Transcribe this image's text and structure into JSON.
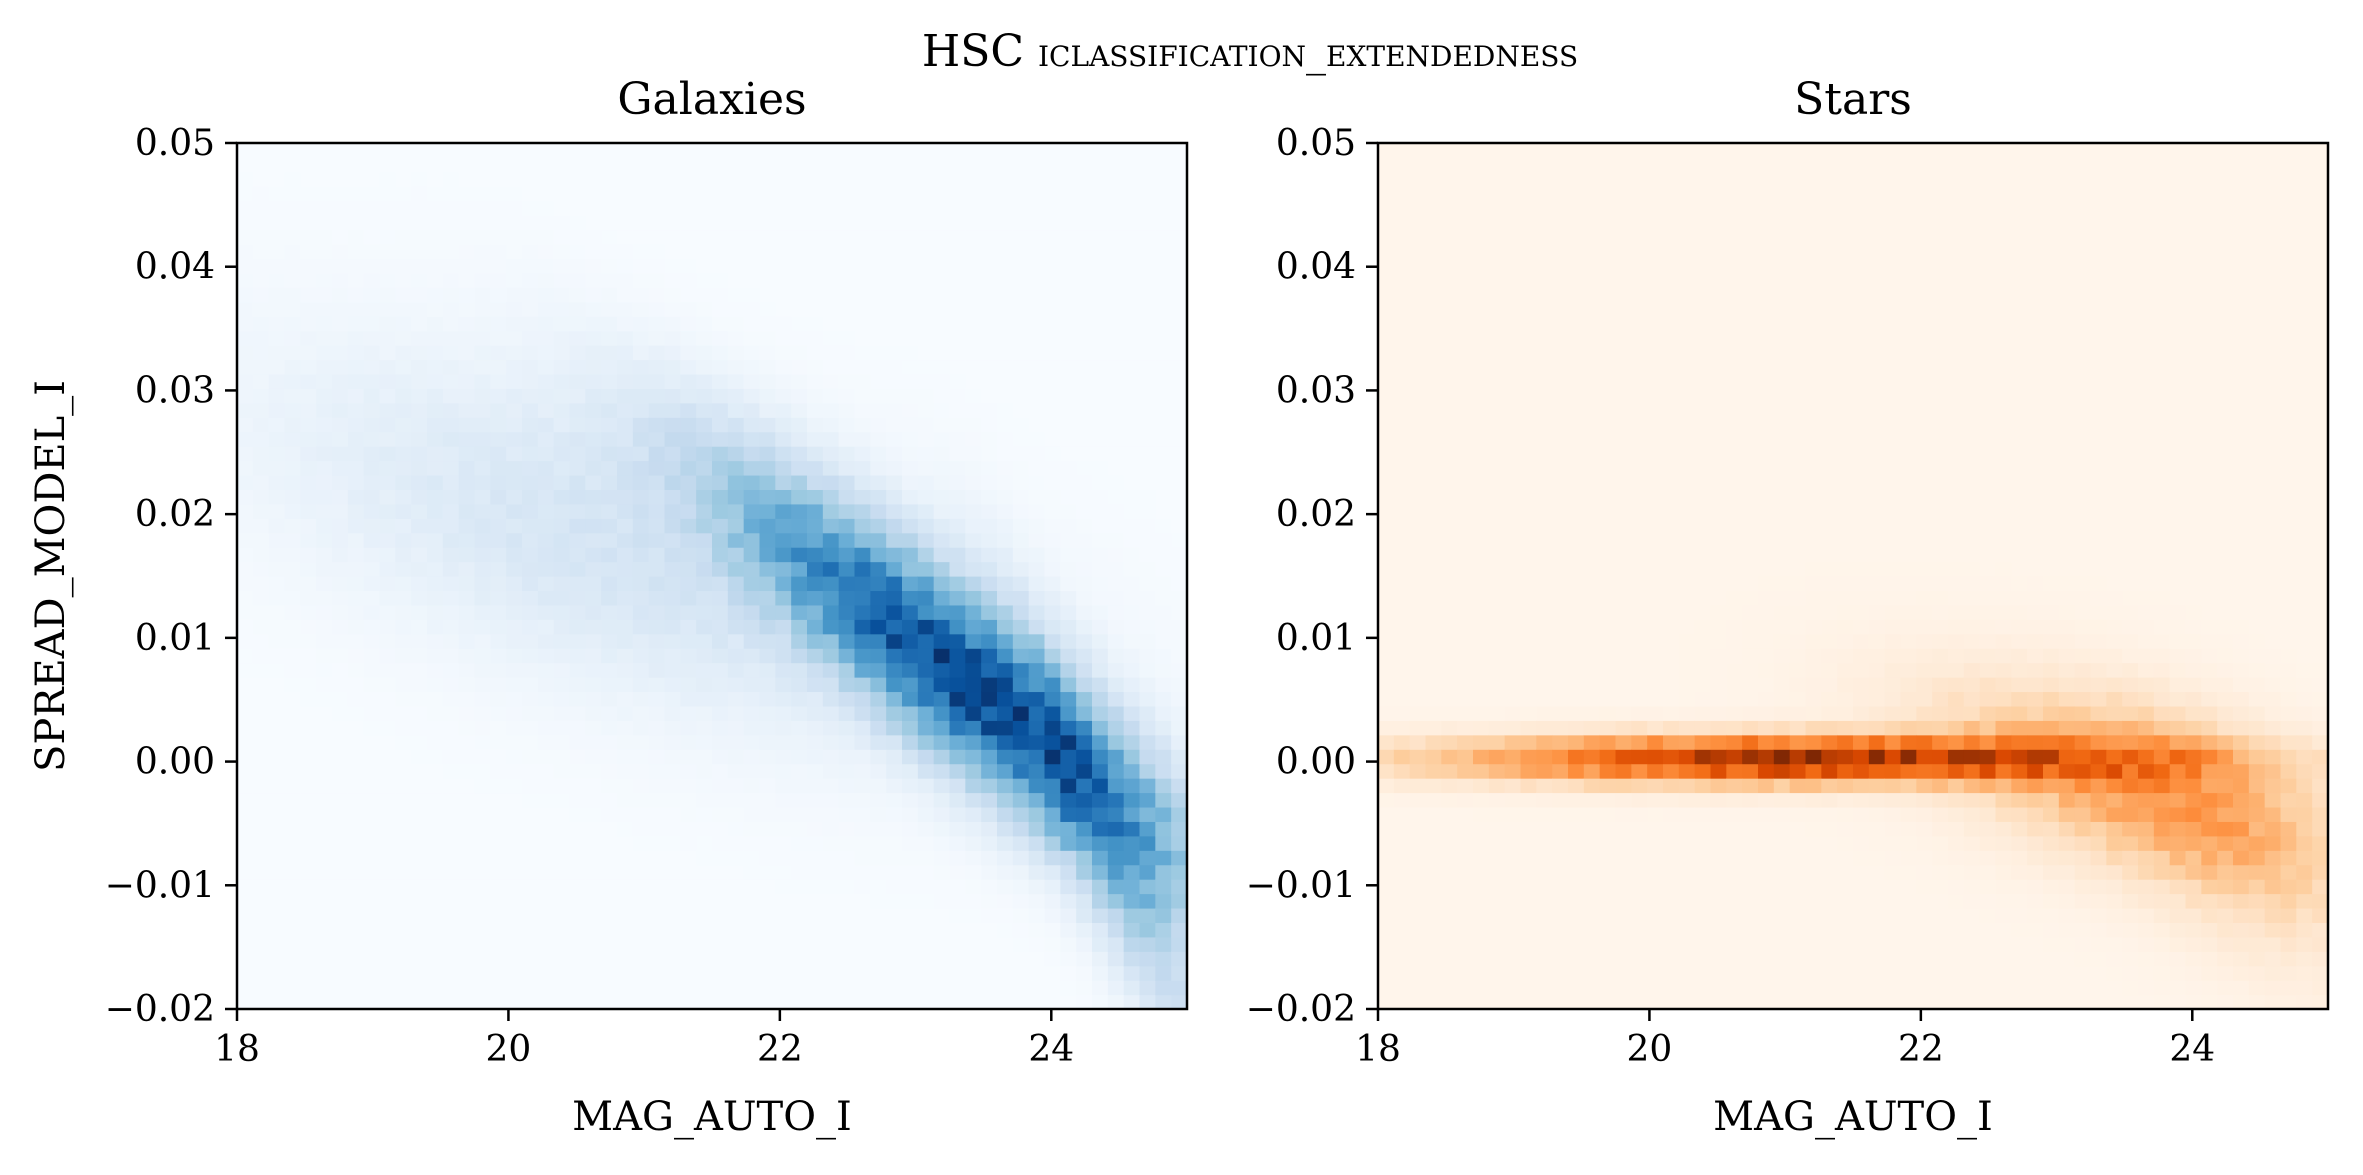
{
  "figure": {
    "suptitle": "HSC iclassification_extendedness"
  },
  "chart_data": [
    {
      "type": "heatmap",
      "title": "Galaxies",
      "xlabel": "MAG_AUTO_I",
      "ylabel": "SPREAD_MODEL_I",
      "xlim": [
        18,
        25
      ],
      "ylim": [
        -0.02,
        0.05
      ],
      "xticks": [
        18,
        20,
        22,
        24
      ],
      "yticks": [
        -0.02,
        -0.01,
        0.0,
        0.01,
        0.02,
        0.03,
        0.04,
        0.05
      ],
      "xtick_labels": [
        "18",
        "20",
        "22",
        "24"
      ],
      "ytick_labels": [
        "−0.02",
        "−0.01",
        "0.00",
        "0.01",
        "0.02",
        "0.03",
        "0.04",
        "0.05"
      ],
      "colormap": "Blues",
      "colormap_colors": [
        "#f7fbff",
        "#deebf7",
        "#c6dbef",
        "#9ecae1",
        "#6baed6",
        "#4292c6",
        "#2171b5",
        "#08519c",
        "#08306b"
      ],
      "bins": {
        "x": 60,
        "y": 60
      },
      "grid": false,
      "density_model": {
        "comment_free": true,
        "components": [
          {
            "center_mag": 23.35,
            "center_spread": 0.0065,
            "sigma_along": 1.05,
            "sigma_across": 0.22,
            "tilt": -0.0085,
            "weight": 1.0
          },
          {
            "center_mag": 21.0,
            "center_spread": 0.017,
            "sigma_along": 1.6,
            "sigma_across": 0.35,
            "tilt": -0.0035,
            "weight": 0.12
          },
          {
            "center_mag": 24.4,
            "center_spread": -0.006,
            "sigma_along": 0.45,
            "sigma_across": 0.25,
            "tilt": -0.02,
            "weight": 0.3
          }
        ]
      }
    },
    {
      "type": "heatmap",
      "title": "Stars",
      "xlabel": "MAG_AUTO_I",
      "ylabel": "",
      "xlim": [
        18,
        25
      ],
      "ylim": [
        -0.02,
        0.05
      ],
      "xticks": [
        18,
        20,
        22,
        24
      ],
      "yticks": [
        -0.02,
        -0.01,
        0.0,
        0.01,
        0.02,
        0.03,
        0.04,
        0.05
      ],
      "xtick_labels": [
        "18",
        "20",
        "22",
        "24"
      ],
      "ytick_labels": [
        "−0.02",
        "−0.01",
        "0.00",
        "0.01",
        "0.02",
        "0.03",
        "0.04",
        "0.05"
      ],
      "colormap": "Oranges",
      "colormap_colors": [
        "#fff5eb",
        "#fee6ce",
        "#fdd0a2",
        "#fdae6b",
        "#fd8d3c",
        "#f16913",
        "#d94801",
        "#a63603",
        "#7f2704"
      ],
      "bins": {
        "x": 60,
        "y": 60
      },
      "grid": false,
      "density_model": {
        "components": [
          {
            "center_mag": 21.2,
            "center_spread": 0.0002,
            "sigma_along": 1.6,
            "sigma_across": 0.0012,
            "tilt": 0.0,
            "weight": 1.0
          },
          {
            "center_mag": 23.6,
            "center_spread": -0.002,
            "sigma_along": 0.9,
            "sigma_across": 0.004,
            "tilt": -0.003,
            "weight": 0.35
          },
          {
            "center_mag": 24.3,
            "center_spread": -0.007,
            "sigma_along": 0.6,
            "sigma_across": 0.005,
            "tilt": -0.006,
            "weight": 0.12
          }
        ]
      }
    }
  ]
}
